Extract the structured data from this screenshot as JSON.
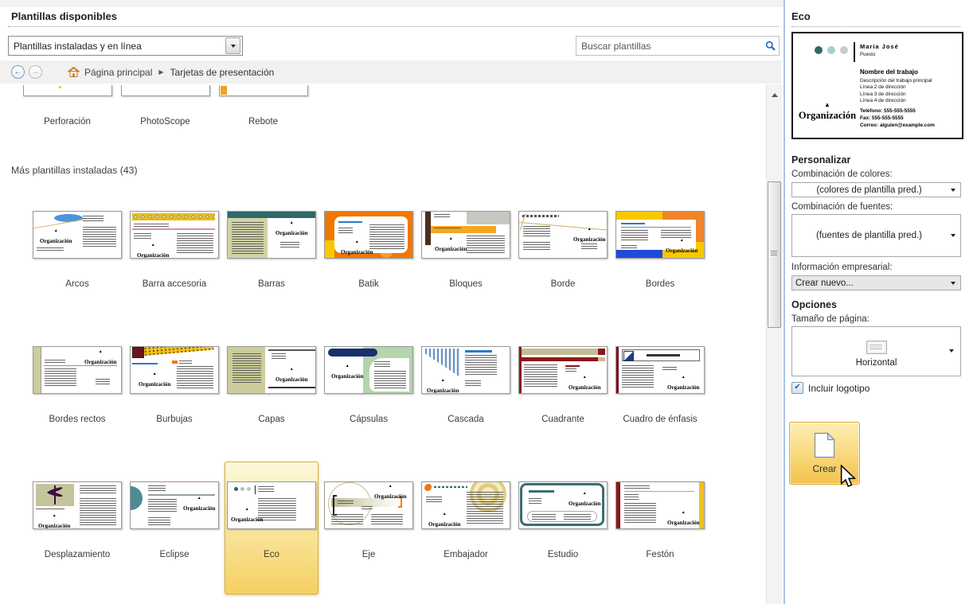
{
  "colors": {
    "selection_gold": "#F3C64F",
    "panel_divider_blue": "#A9C4E9",
    "search_icon_blue": "#1E62C8",
    "checkbox_blue": "#2A58A8",
    "breadcrumb_bg": "#F1F1F0"
  },
  "icons": {
    "search": "magnifier-icon",
    "back": "arrow-left-icon",
    "forward": "arrow-right-icon",
    "home": "home-icon",
    "dropdown_caret": "▼",
    "scrollbar_up": "▲",
    "checkbox_check": "✔",
    "create_document": "blank-document-icon",
    "page_size_horizontal": "horizontal-card-icon",
    "cursor": "mouse-pointer-icon",
    "back_glyph": "←",
    "forward_glyph": "→"
  },
  "header": {
    "title": "Plantillas disponibles",
    "filter_value": "Plantillas instaladas y en línea",
    "search_placeholder": "Buscar plantillas"
  },
  "breadcrumb": {
    "home_label": "Página principal",
    "separator": "▶",
    "current": "Tarjetas de presentación"
  },
  "grid": {
    "section_heading": "Más plantillas instaladas (43)",
    "org_label": "Organización",
    "selected_template": "Eco",
    "partial_row": [
      {
        "label": "Perforación",
        "slug": "perforacion"
      },
      {
        "label": "PhotoScope",
        "slug": "photoscope"
      },
      {
        "label": "Rebote",
        "slug": "rebote"
      }
    ],
    "rows": [
      [
        {
          "label": "Arcos",
          "slug": "arcos"
        },
        {
          "label": "Barra accesoria",
          "slug": "barra-accesoria"
        },
        {
          "label": "Barras",
          "slug": "barras"
        },
        {
          "label": "Batik",
          "slug": "batik"
        },
        {
          "label": "Bloques",
          "slug": "bloques"
        },
        {
          "label": "Borde",
          "slug": "borde"
        },
        {
          "label": "Bordes",
          "slug": "bordes"
        }
      ],
      [
        {
          "label": "Bordes rectos",
          "slug": "bordes-rectos"
        },
        {
          "label": "Burbujas",
          "slug": "burbujas"
        },
        {
          "label": "Capas",
          "slug": "capas"
        },
        {
          "label": "Cápsulas",
          "slug": "capsulas"
        },
        {
          "label": "Cascada",
          "slug": "cascada"
        },
        {
          "label": "Cuadrante",
          "slug": "cuadrante"
        },
        {
          "label": "Cuadro de énfasis",
          "slug": "cuadro-de-enfasis"
        }
      ],
      [
        {
          "label": "Desplazamiento",
          "slug": "desplazamiento"
        },
        {
          "label": "Eclipse",
          "slug": "eclipse"
        },
        {
          "label": "Eco",
          "slug": "eco",
          "selected": true
        },
        {
          "label": "Eje",
          "slug": "eje"
        },
        {
          "label": "Embajador",
          "slug": "embajador"
        },
        {
          "label": "Estudio",
          "slug": "estudio"
        },
        {
          "label": "Festón",
          "slug": "feston"
        }
      ]
    ]
  },
  "panel": {
    "title": "Eco",
    "preview": {
      "name": "María José",
      "role": "Puesto",
      "job_title": "Nombre del trabajo",
      "desc": "Descripción del trabajo principal",
      "addr2": "Línea 2 de dirección",
      "addr3": "Línea 3 de dirección",
      "addr4": "Línea 4 de dirección",
      "phone": "Teléfono: 555-555-5555",
      "fax": "Fax: 555-555-5555",
      "email": "Correo: alguien@example.com",
      "org": "Organización",
      "logo_glyph": "▲"
    },
    "personalizar": {
      "heading": "Personalizar",
      "color_label": "Combinación de colores:",
      "color_value": "(colores de plantilla pred.)",
      "font_label": "Combinación de fuentes:",
      "font_value": "(fuentes de plantilla pred.)",
      "info_label": "Información empresarial:",
      "info_value": "Crear nuevo..."
    },
    "opciones": {
      "heading": "Opciones",
      "page_size_label": "Tamaño de página:",
      "page_size_value": "Horizontal",
      "logo_label": "Incluir logotipo",
      "logo_checked": true
    },
    "create_label": "Crear"
  }
}
